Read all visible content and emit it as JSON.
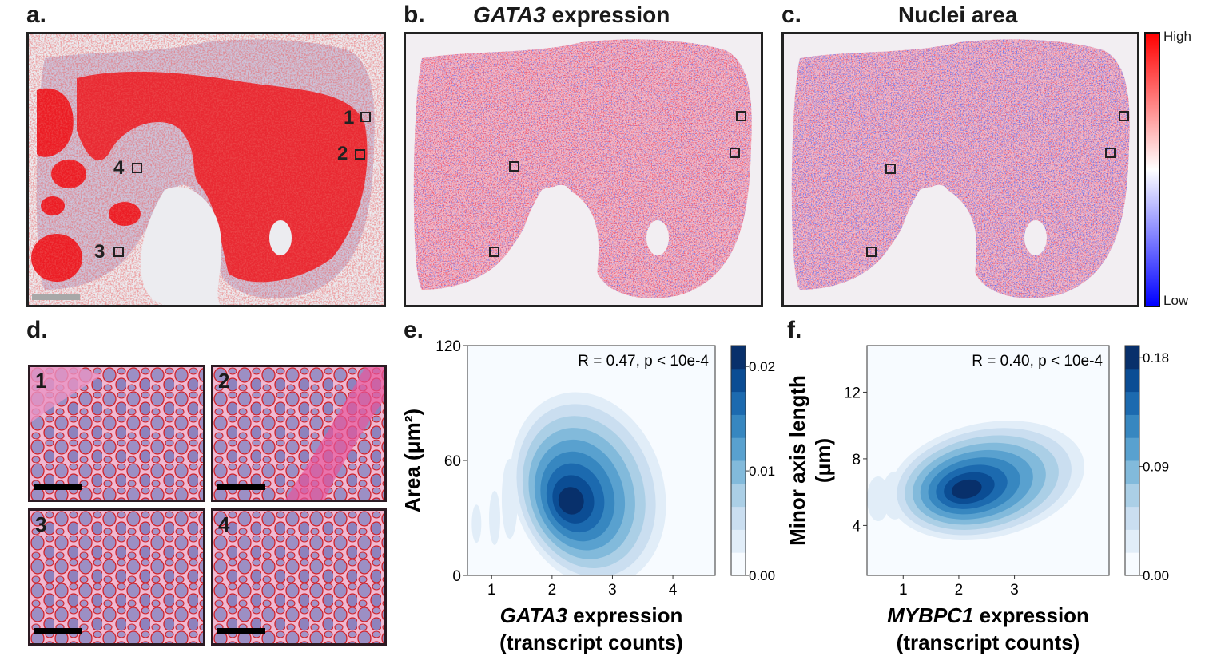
{
  "panels": {
    "a": {
      "label": "a.",
      "roi_labels": [
        "1",
        "2",
        "3",
        "4"
      ]
    },
    "b": {
      "label": "b.",
      "title_italic": "GATA3",
      "title_rest": " expression"
    },
    "c": {
      "label": "c.",
      "title": "Nuclei area"
    },
    "d": {
      "label": "d.",
      "tiles": [
        "1",
        "2",
        "3",
        "4"
      ]
    },
    "e": {
      "label": "e."
    },
    "f": {
      "label": "f."
    }
  },
  "colorbar_map": {
    "high": "High",
    "low": "Low",
    "colors": [
      "#0000ff",
      "#ffffff",
      "#ff0000"
    ]
  },
  "chart_data": [
    {
      "type": "heatmap",
      "panel": "e",
      "annotation": "R = 0.47, p < 10e-4",
      "xlabel_italic": "GATA3",
      "xlabel_rest": " expression",
      "xlabel_line2": "(transcript counts)",
      "ylabel": "Area (μm²)",
      "xticks": [
        1,
        2,
        3,
        4
      ],
      "yticks": [
        0,
        60,
        120
      ],
      "xlim": [
        0.6,
        4.7
      ],
      "ylim": [
        0,
        120
      ],
      "density_peak": {
        "x": 2.6,
        "y": 45
      },
      "colorbar_ticks": [
        "0.02",
        "0.01",
        "0.00"
      ],
      "colorbar_range": [
        0.0,
        0.022
      ]
    },
    {
      "type": "heatmap",
      "panel": "f",
      "annotation": "R = 0.40, p < 10e-4",
      "xlabel_italic": "MYBPC1",
      "xlabel_rest": " expression",
      "xlabel_line2": "(transcript counts)",
      "ylabel_line1": "Minor axis length",
      "ylabel_line2": "(μm)",
      "xticks": [
        1,
        2,
        3
      ],
      "yticks": [
        4,
        8,
        12
      ],
      "xlim": [
        0.35,
        4.7
      ],
      "ylim": [
        1,
        14.8
      ],
      "density_peak": {
        "x": 2.5,
        "y": 6.7
      },
      "colorbar_ticks": [
        "0.18",
        "0.09",
        "0.00"
      ],
      "colorbar_range": [
        0.0,
        0.19
      ]
    }
  ]
}
